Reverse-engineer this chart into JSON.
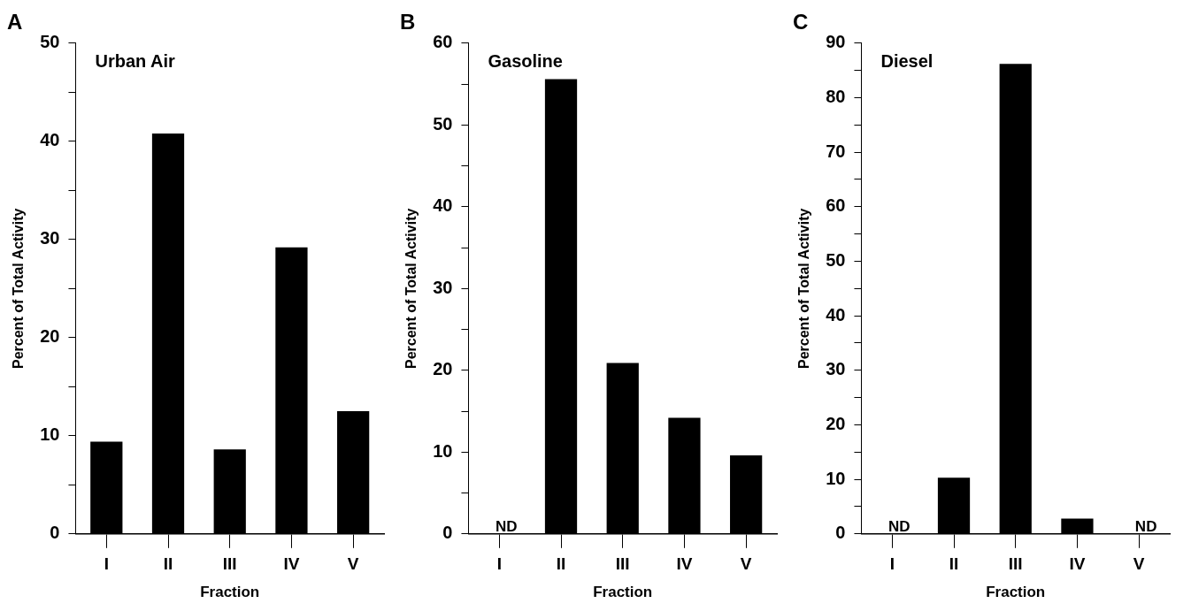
{
  "chart_data": [
    {
      "type": "bar",
      "title": "A",
      "subtitle": "Urban Air",
      "xlabel": "Fraction",
      "ylabel": "Percent of Total Activity",
      "categories": [
        "I",
        "II",
        "III",
        "IV",
        "V"
      ],
      "values": [
        9.4,
        40.8,
        8.6,
        29.2,
        12.5
      ],
      "color": "#000000",
      "ylim": [
        0,
        50
      ],
      "yticks": [
        0,
        {
          "value": 5,
          "label": null
        },
        10,
        {
          "value": 15,
          "label": null
        },
        20,
        {
          "value": 25,
          "label": null
        },
        30,
        {
          "value": 35,
          "label": null
        },
        40,
        {
          "value": 45,
          "label": null
        },
        50
      ],
      "grid": false,
      "legend": false
    },
    {
      "type": "bar",
      "title": "B",
      "subtitle": "Gasoline",
      "xlabel": "Fraction",
      "ylabel": "Percent of Total Activity",
      "categories": [
        "I",
        "II",
        "III",
        "IV",
        "V"
      ],
      "values": [
        null,
        55.6,
        20.9,
        14.2,
        9.6
      ],
      "color": "#000000",
      "ylim": [
        0,
        60
      ],
      "yticks": [
        0,
        {
          "value": 5,
          "label": null
        },
        10,
        {
          "value": 15,
          "label": null
        },
        20,
        {
          "value": 25,
          "label": null
        },
        30,
        {
          "value": 35,
          "label": null
        },
        40,
        {
          "value": 45,
          "label": null
        },
        50,
        {
          "value": 55,
          "label": null
        },
        60
      ],
      "grid": false,
      "legend": false,
      "annotations": [
        "ND"
      ]
    },
    {
      "type": "bar",
      "title": "C",
      "subtitle": "Diesel",
      "xlabel": "Fraction",
      "ylabel": "Percent of Total Activity",
      "categories": [
        "I",
        "II",
        "III",
        "IV",
        "V"
      ],
      "values": [
        null,
        10.3,
        86.2,
        2.8,
        null
      ],
      "color": "#000000",
      "ylim": [
        0,
        90
      ],
      "yticks": [
        0,
        {
          "value": 5,
          "label": null
        },
        10,
        {
          "value": 15,
          "label": null
        },
        20,
        {
          "value": 25,
          "label": null
        },
        30,
        {
          "value": 35,
          "label": null
        },
        40,
        {
          "value": 45,
          "label": null
        },
        50,
        {
          "value": 55,
          "label": null
        },
        60,
        {
          "value": 65,
          "label": null
        },
        70,
        {
          "value": 75,
          "label": null
        },
        80,
        {
          "value": 85,
          "label": null
        },
        90
      ],
      "grid": false,
      "legend": false,
      "annotations": [
        "ND",
        "ND"
      ]
    }
  ]
}
